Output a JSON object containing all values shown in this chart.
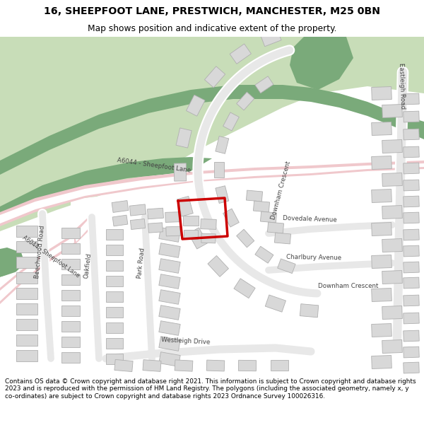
{
  "title_line1": "16, SHEEPFOOT LANE, PRESTWICH, MANCHESTER, M25 0BN",
  "title_line2": "Map shows position and indicative extent of the property.",
  "footer_text": "Contains OS data © Crown copyright and database right 2021. This information is subject to Crown copyright and database rights 2023 and is reproduced with the permission of HM Land Registry. The polygons (including the associated geometry, namely x, y co-ordinates) are subject to Crown copyright and database rights 2023 Ordnance Survey 100026316.",
  "green_light": "#c8ddb8",
  "green_dark": "#7aaa7a",
  "road_pink_fill": "#f0c8cc",
  "road_pink_edge": "#e8b0b8",
  "road_white": "#ffffff",
  "building_fill": "#d8d8d8",
  "building_edge": "#b0b0b0",
  "highlight_red": "#cc0000",
  "map_bg": "#f8f8f8",
  "residential_bg": "#f8f8f8",
  "header_bg": "#ffffff",
  "footer_bg": "#ffffff",
  "text_color": "#444444"
}
